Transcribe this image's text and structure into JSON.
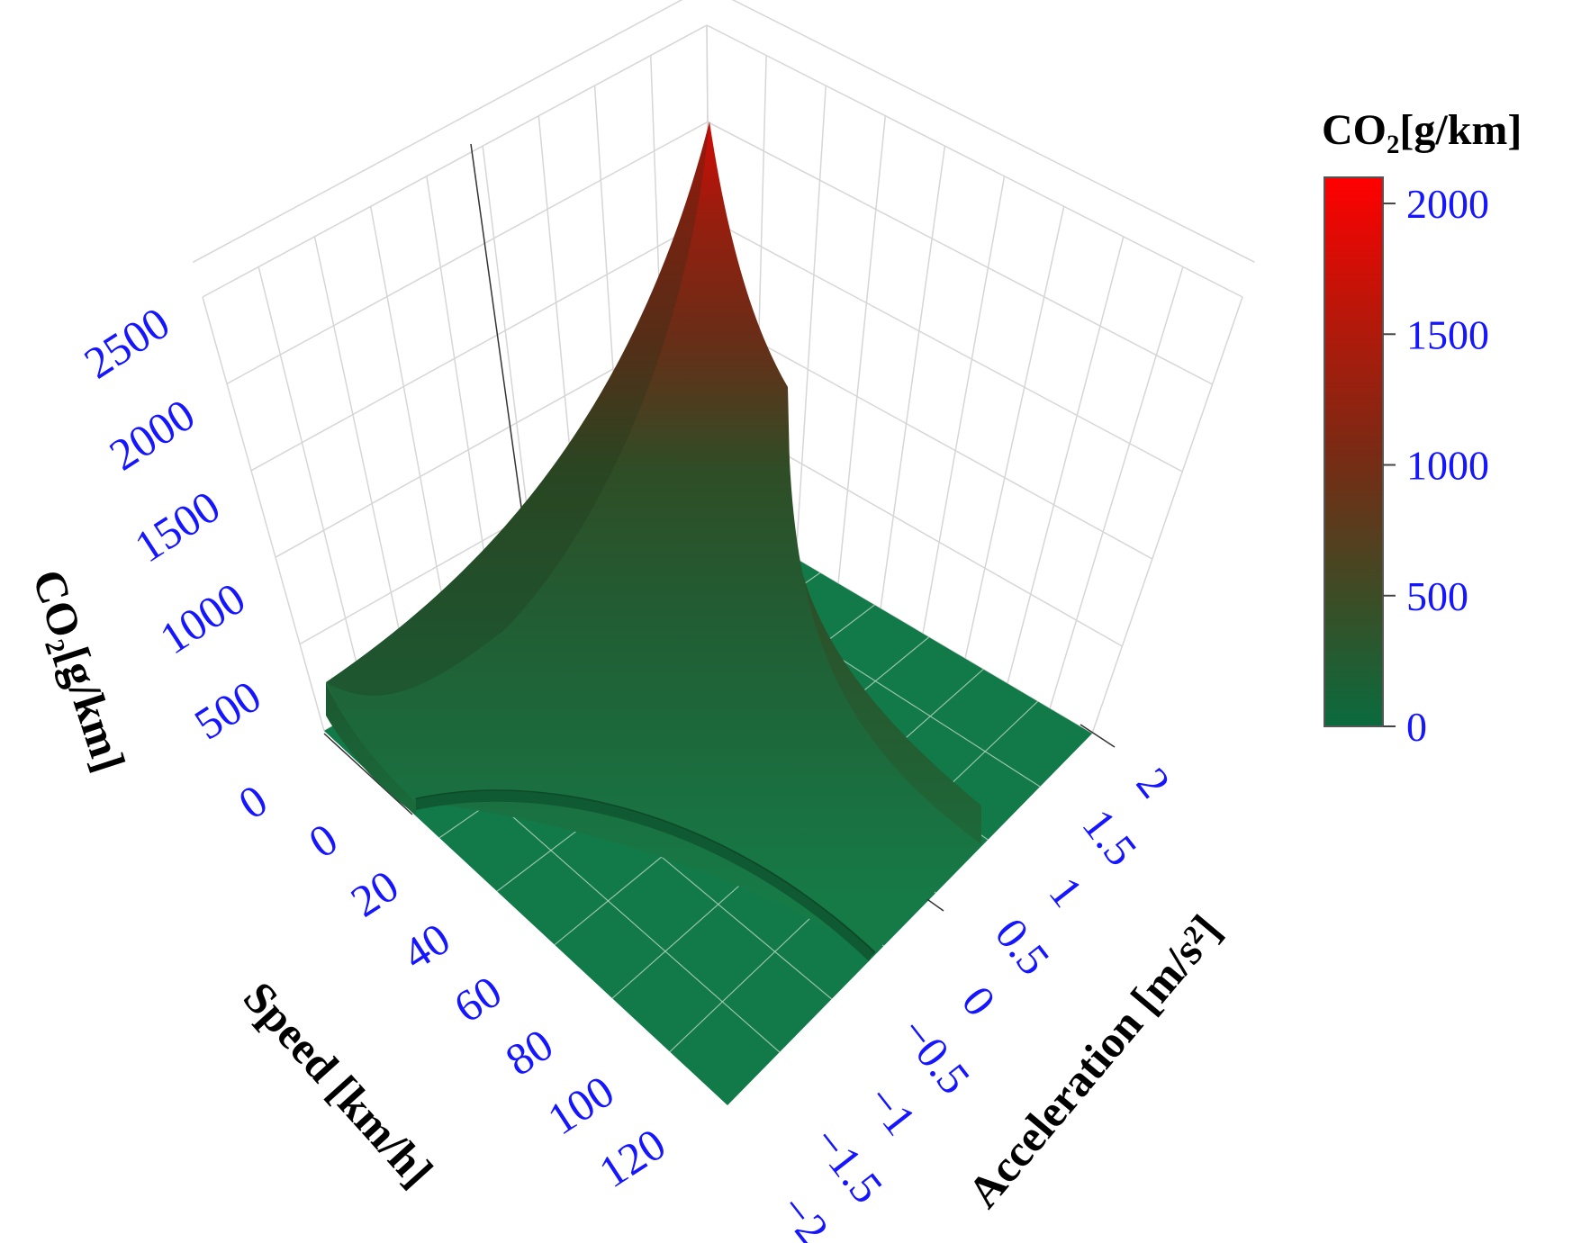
{
  "chart_data": {
    "type": "surface3d",
    "x": {
      "label": "Speed [km/h]",
      "ticks": [
        0,
        20,
        40,
        60,
        80,
        100,
        120
      ],
      "range": [
        0,
        130
      ]
    },
    "y": {
      "label": "Acceleration [m/s²]",
      "ticks": [
        -2,
        -1.5,
        -1,
        -0.5,
        0,
        0.5,
        1,
        1.5,
        2
      ],
      "tick_labels": [
        "−2",
        "−1.5",
        "−1",
        "−0.5",
        "0",
        "0.5",
        "1",
        "1.5",
        "2"
      ],
      "range": [
        -2,
        2
      ]
    },
    "z": {
      "label": "CO₂[g/km]",
      "ticks": [
        0,
        500,
        1000,
        1500,
        2000,
        2500
      ],
      "range": [
        0,
        2500
      ]
    },
    "colorbar": {
      "title": "CO₂[g/km]",
      "ticks": [
        0,
        500,
        1000,
        1500,
        2000
      ],
      "range": [
        0,
        2100
      ],
      "colors": [
        "#0a6b3e",
        "#3f4b24",
        "#7a2a14",
        "#b8170a",
        "#ff0000"
      ]
    },
    "surface_samples": [
      {
        "speed": 3,
        "acceleration": 1.2,
        "co2": 2100
      },
      {
        "speed": 10,
        "acceleration": 1.2,
        "co2": 1100
      },
      {
        "speed": 20,
        "acceleration": 1.2,
        "co2": 730
      },
      {
        "speed": 60,
        "acceleration": 1.2,
        "co2": 400
      },
      {
        "speed": 120,
        "acceleration": 1.2,
        "co2": 290
      },
      {
        "speed": 3,
        "acceleration": 0,
        "co2": 1800
      },
      {
        "speed": 20,
        "acceleration": 0,
        "co2": 500
      },
      {
        "speed": 120,
        "acceleration": 0,
        "co2": 240
      },
      {
        "speed": 3,
        "acceleration": -0.8,
        "co2": 1000
      },
      {
        "speed": 60,
        "acceleration": -0.8,
        "co2": 120
      },
      {
        "speed": 120,
        "acceleration": -0.8,
        "co2": 40
      },
      {
        "speed": 60,
        "acceleration": 1.7,
        "co2": 0
      },
      {
        "speed": 60,
        "acceleration": -1.7,
        "co2": 0
      }
    ],
    "grid": true
  },
  "colors": {
    "tick": "#1515ff",
    "floor": "#117a48",
    "low": "#0a6b3e",
    "high": "#ff0000"
  }
}
